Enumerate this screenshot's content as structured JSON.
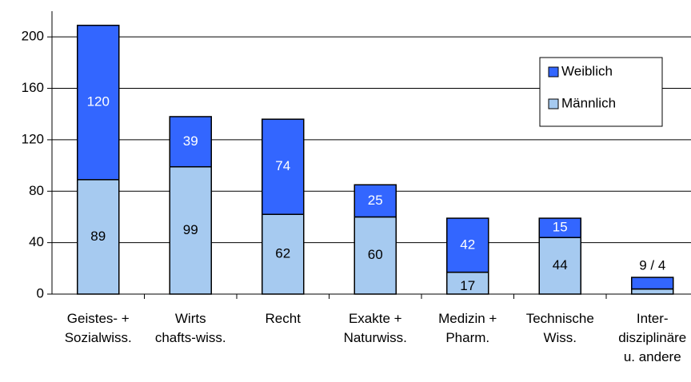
{
  "chart_data": {
    "type": "stacked_bar",
    "categories": [
      "Geistes- +\nSozialwiss.",
      "Wirts\nchafts-wiss.",
      "Recht",
      "Exakte +\nNaturwiss.",
      "Medizin +\nPharm.",
      "Technische\nWiss.",
      "Inter-\ndisziplinäre\nu. andere"
    ],
    "series": [
      {
        "name": "Männlich",
        "color": "#a6caf0",
        "values": [
          89,
          99,
          62,
          60,
          17,
          44,
          4
        ]
      },
      {
        "name": "Weiblich",
        "color": "#3366ff",
        "values": [
          120,
          39,
          74,
          25,
          42,
          15,
          9
        ]
      }
    ],
    "annotation": "9 / 4",
    "ylim": [
      0,
      220
    ],
    "yticks": [
      0,
      40,
      80,
      120,
      160,
      200
    ],
    "grid": true,
    "legend": "upper right"
  }
}
